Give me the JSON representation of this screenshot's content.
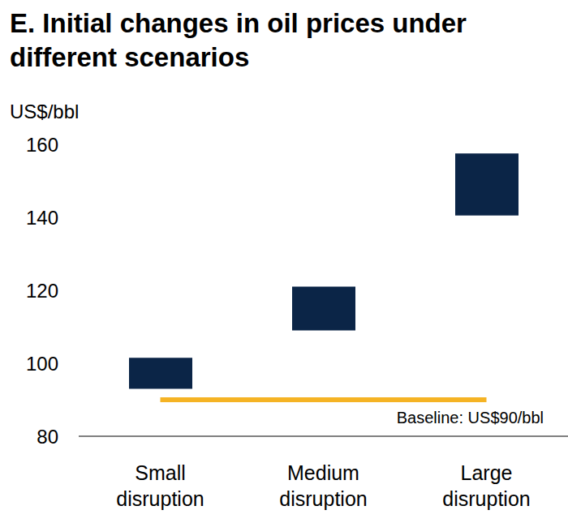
{
  "chart_data": {
    "type": "bar",
    "title": "E. Initial changes in oil prices under different scenarios",
    "y_label": "US$/bbl",
    "categories": [
      "Small disruption",
      "Medium disruption",
      "Large disruption"
    ],
    "values": [
      [
        93,
        101.5
      ],
      [
        109,
        121
      ],
      [
        140.5,
        157.5
      ]
    ],
    "color": "#0b2547",
    "ylim": [
      80,
      160
    ],
    "yticks": [
      80,
      100,
      120,
      140,
      160
    ],
    "grid": false,
    "annotations": [
      {
        "text": "Baseline: US$90/bbl",
        "value": 90,
        "color": "#f5b324"
      }
    ]
  }
}
